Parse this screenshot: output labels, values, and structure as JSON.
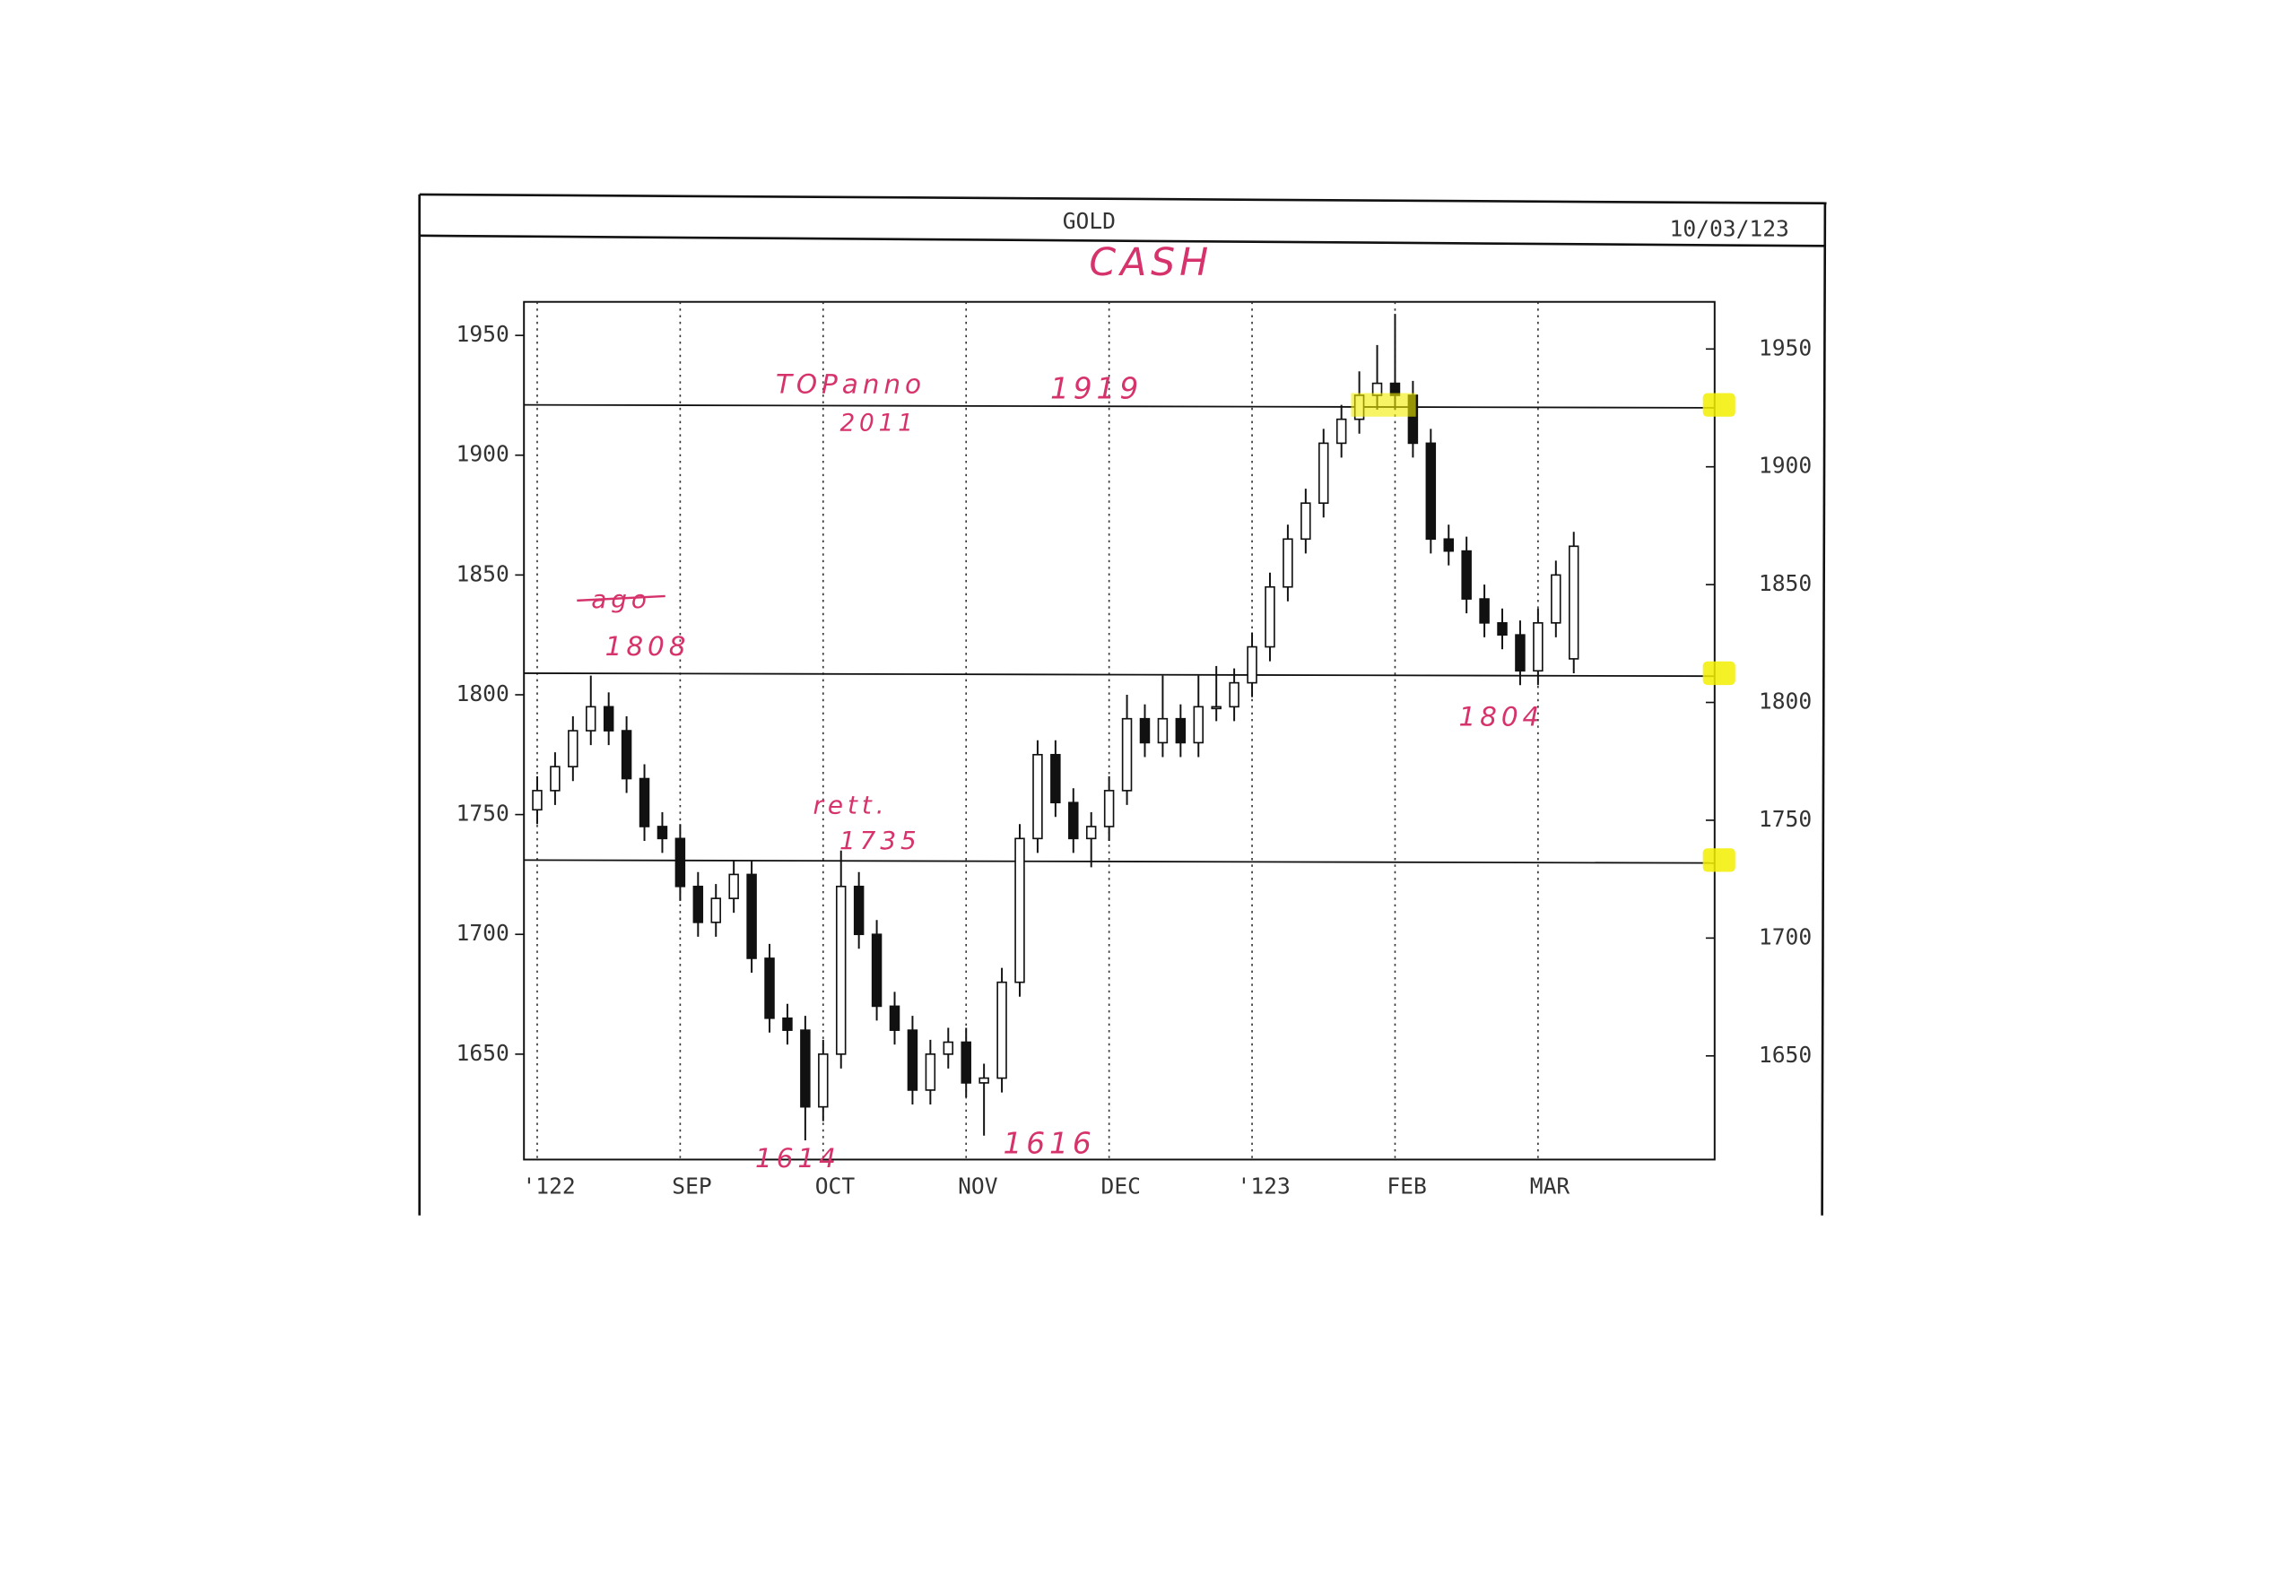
{
  "chart_data": {
    "type": "candlestick",
    "title": "GOLD",
    "date": "10/03/123",
    "categories": [
      "'122",
      null,
      null,
      null,
      null,
      null,
      null,
      null,
      "SEP",
      null,
      null,
      null,
      null,
      null,
      null,
      null,
      "OCT",
      null,
      null,
      null,
      null,
      null,
      null,
      null,
      "NOV",
      null,
      null,
      null,
      null,
      null,
      null,
      null,
      "DEC",
      null,
      null,
      null,
      null,
      null,
      null,
      null,
      "'123",
      null,
      null,
      null,
      null,
      null,
      null,
      null,
      "FEB",
      null,
      null,
      null,
      null,
      null,
      null,
      null,
      "MAR",
      null,
      null
    ],
    "open": [
      1752,
      1760,
      1770,
      1785,
      1795,
      1785,
      1765,
      1745,
      1740,
      1720,
      1705,
      1715,
      1725,
      1690,
      1665,
      1660,
      1628,
      1650,
      1720,
      1700,
      1670,
      1660,
      1635,
      1650,
      1655,
      1638,
      1640,
      1680,
      1740,
      1775,
      1755,
      1740,
      1745,
      1760,
      1790,
      1780,
      1790,
      1780,
      1795,
      1795,
      1805,
      1820,
      1845,
      1865,
      1880,
      1905,
      1915,
      1925,
      1930,
      1925,
      1905,
      1865,
      1860,
      1840,
      1830,
      1825,
      1810,
      1830,
      1815
    ],
    "high": [
      1766,
      1776,
      1791,
      1808,
      1801,
      1791,
      1771,
      1751,
      1746,
      1726,
      1721,
      1731,
      1731,
      1696,
      1671,
      1666,
      1656,
      1735,
      1726,
      1706,
      1676,
      1666,
      1656,
      1661,
      1661,
      1646,
      1686,
      1746,
      1781,
      1781,
      1761,
      1751,
      1766,
      1800,
      1796,
      1808,
      1796,
      1808,
      1812,
      1811,
      1826,
      1851,
      1871,
      1886,
      1911,
      1921,
      1935,
      1946,
      1959,
      1931,
      1911,
      1871,
      1866,
      1846,
      1836,
      1831,
      1836,
      1856,
      1868
    ],
    "low": [
      1746,
      1754,
      1764,
      1779,
      1779,
      1759,
      1739,
      1734,
      1714,
      1699,
      1699,
      1709,
      1684,
      1659,
      1654,
      1614,
      1622,
      1644,
      1694,
      1664,
      1654,
      1629,
      1629,
      1644,
      1632,
      1616,
      1634,
      1674,
      1734,
      1749,
      1734,
      1728,
      1739,
      1754,
      1774,
      1774,
      1774,
      1774,
      1789,
      1789,
      1799,
      1814,
      1839,
      1859,
      1874,
      1899,
      1909,
      1919,
      1919,
      1899,
      1859,
      1854,
      1834,
      1824,
      1819,
      1804,
      1804,
      1824,
      1809
    ],
    "close": [
      1760,
      1770,
      1785,
      1795,
      1785,
      1765,
      1745,
      1740,
      1720,
      1705,
      1715,
      1725,
      1690,
      1665,
      1660,
      1628,
      1650,
      1720,
      1700,
      1670,
      1660,
      1635,
      1650,
      1655,
      1638,
      1640,
      1680,
      1740,
      1775,
      1755,
      1740,
      1745,
      1760,
      1790,
      1780,
      1790,
      1780,
      1795,
      1795,
      1805,
      1820,
      1845,
      1865,
      1880,
      1905,
      1915,
      1925,
      1930,
      1925,
      1905,
      1865,
      1860,
      1840,
      1830,
      1825,
      1810,
      1830,
      1850,
      1862
    ],
    "color": "#111111",
    "ylim": [
      1606,
      1964
    ],
    "yticks": [
      1650,
      1700,
      1750,
      1800,
      1850,
      1900,
      1950
    ],
    "y2lim": [
      1606,
      1970
    ],
    "y2ticks": [
      1650,
      1700,
      1750,
      1800,
      1850,
      1900,
      1950
    ],
    "grid": true,
    "reference_lines": [
      1921,
      1809,
      1731
    ],
    "highlight_color": "#f2ee00",
    "annotation_color": "#d6336c",
    "annotations": [
      "CASH",
      "TOPanno",
      "2011",
      "1919",
      "ago",
      "1808",
      "1804",
      "rett.",
      "1735",
      "1614",
      "1616"
    ]
  }
}
